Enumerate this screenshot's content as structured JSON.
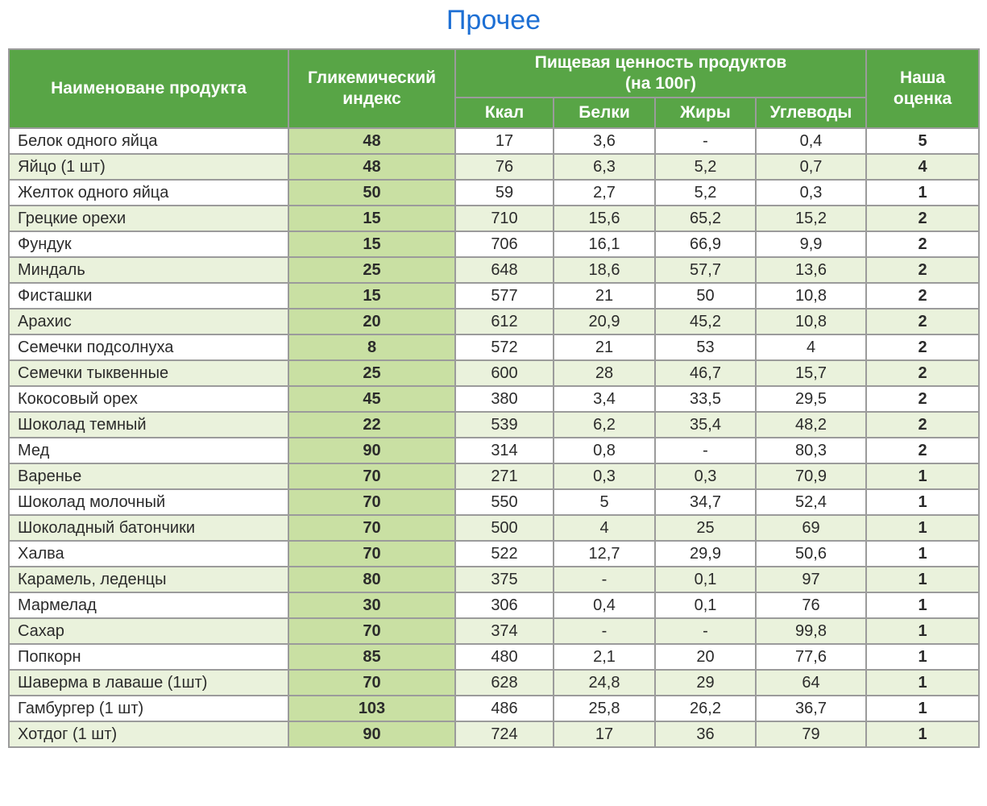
{
  "title": "Прочее",
  "colors": {
    "title_blue": "#1d6fd4",
    "header_green": "#58a546",
    "gi_cell_green": "#c9e0a3",
    "alt_row_green": "#eaf2dc",
    "border_gray": "#9b9b9b",
    "header_text": "#ffffff",
    "body_text": "#2b2b2b"
  },
  "header": {
    "product": "Наименоване продукта",
    "gi": "Гликемический индекс",
    "nutrition_group_line1": "Пищевая ценность продуктов",
    "nutrition_group_line2": "(на 100г)",
    "kcal": "Ккал",
    "protein": "Белки",
    "fat": "Жиры",
    "carbs": "Углеводы",
    "rating_line1": "Наша",
    "rating_line2": "оценка"
  },
  "chart_data": {
    "type": "table",
    "title": "Прочее",
    "column_group": {
      "label": "Пищевая ценность продуктов (на 100г)",
      "spans": [
        "Ккал",
        "Белки",
        "Жиры",
        "Углеводы"
      ]
    },
    "columns": [
      "Наименоване продукта",
      "Гликемический индекс",
      "Ккал",
      "Белки",
      "Жиры",
      "Углеводы",
      "Наша оценка"
    ],
    "rows": [
      [
        "Белок одного яйца",
        "48",
        "17",
        "3,6",
        "-",
        "0,4",
        "5"
      ],
      [
        "Яйцо (1 шт)",
        "48",
        "76",
        "6,3",
        "5,2",
        "0,7",
        "4"
      ],
      [
        "Желток одного яйца",
        "50",
        "59",
        "2,7",
        "5,2",
        "0,3",
        "1"
      ],
      [
        "Грецкие орехи",
        "15",
        "710",
        "15,6",
        "65,2",
        "15,2",
        "2"
      ],
      [
        "Фундук",
        "15",
        "706",
        "16,1",
        "66,9",
        "9,9",
        "2"
      ],
      [
        "Миндаль",
        "25",
        "648",
        "18,6",
        "57,7",
        "13,6",
        "2"
      ],
      [
        "Фисташки",
        "15",
        "577",
        "21",
        "50",
        "10,8",
        "2"
      ],
      [
        "Арахис",
        "20",
        "612",
        "20,9",
        "45,2",
        "10,8",
        "2"
      ],
      [
        "Семечки подсолнуха",
        "8",
        "572",
        "21",
        "53",
        "4",
        "2"
      ],
      [
        "Семечки тыквенные",
        "25",
        "600",
        "28",
        "46,7",
        "15,7",
        "2"
      ],
      [
        "Кокосовый орех",
        "45",
        "380",
        "3,4",
        "33,5",
        "29,5",
        "2"
      ],
      [
        "Шоколад темный",
        "22",
        "539",
        "6,2",
        "35,4",
        "48,2",
        "2"
      ],
      [
        "Мед",
        "90",
        "314",
        "0,8",
        "-",
        "80,3",
        "2"
      ],
      [
        "Варенье",
        "70",
        "271",
        "0,3",
        "0,3",
        "70,9",
        "1"
      ],
      [
        "Шоколад молочный",
        "70",
        "550",
        "5",
        "34,7",
        "52,4",
        "1"
      ],
      [
        "Шоколадный батончики",
        "70",
        "500",
        "4",
        "25",
        "69",
        "1"
      ],
      [
        "Халва",
        "70",
        "522",
        "12,7",
        "29,9",
        "50,6",
        "1"
      ],
      [
        "Карамель, леденцы",
        "80",
        "375",
        "-",
        "0,1",
        "97",
        "1"
      ],
      [
        "Мармелад",
        "30",
        "306",
        "0,4",
        "0,1",
        "76",
        "1"
      ],
      [
        "Сахар",
        "70",
        "374",
        "-",
        "-",
        "99,8",
        "1"
      ],
      [
        "Попкорн",
        "85",
        "480",
        "2,1",
        "20",
        "77,6",
        "1"
      ],
      [
        "Шаверма в лаваше (1шт)",
        "70",
        "628",
        "24,8",
        "29",
        "64",
        "1"
      ],
      [
        "Гамбургер (1 шт)",
        "103",
        "486",
        "25,8",
        "26,2",
        "36,7",
        "1"
      ],
      [
        "Хотдог (1 шт)",
        "90",
        "724",
        "17",
        "36",
        "79",
        "1"
      ]
    ]
  }
}
